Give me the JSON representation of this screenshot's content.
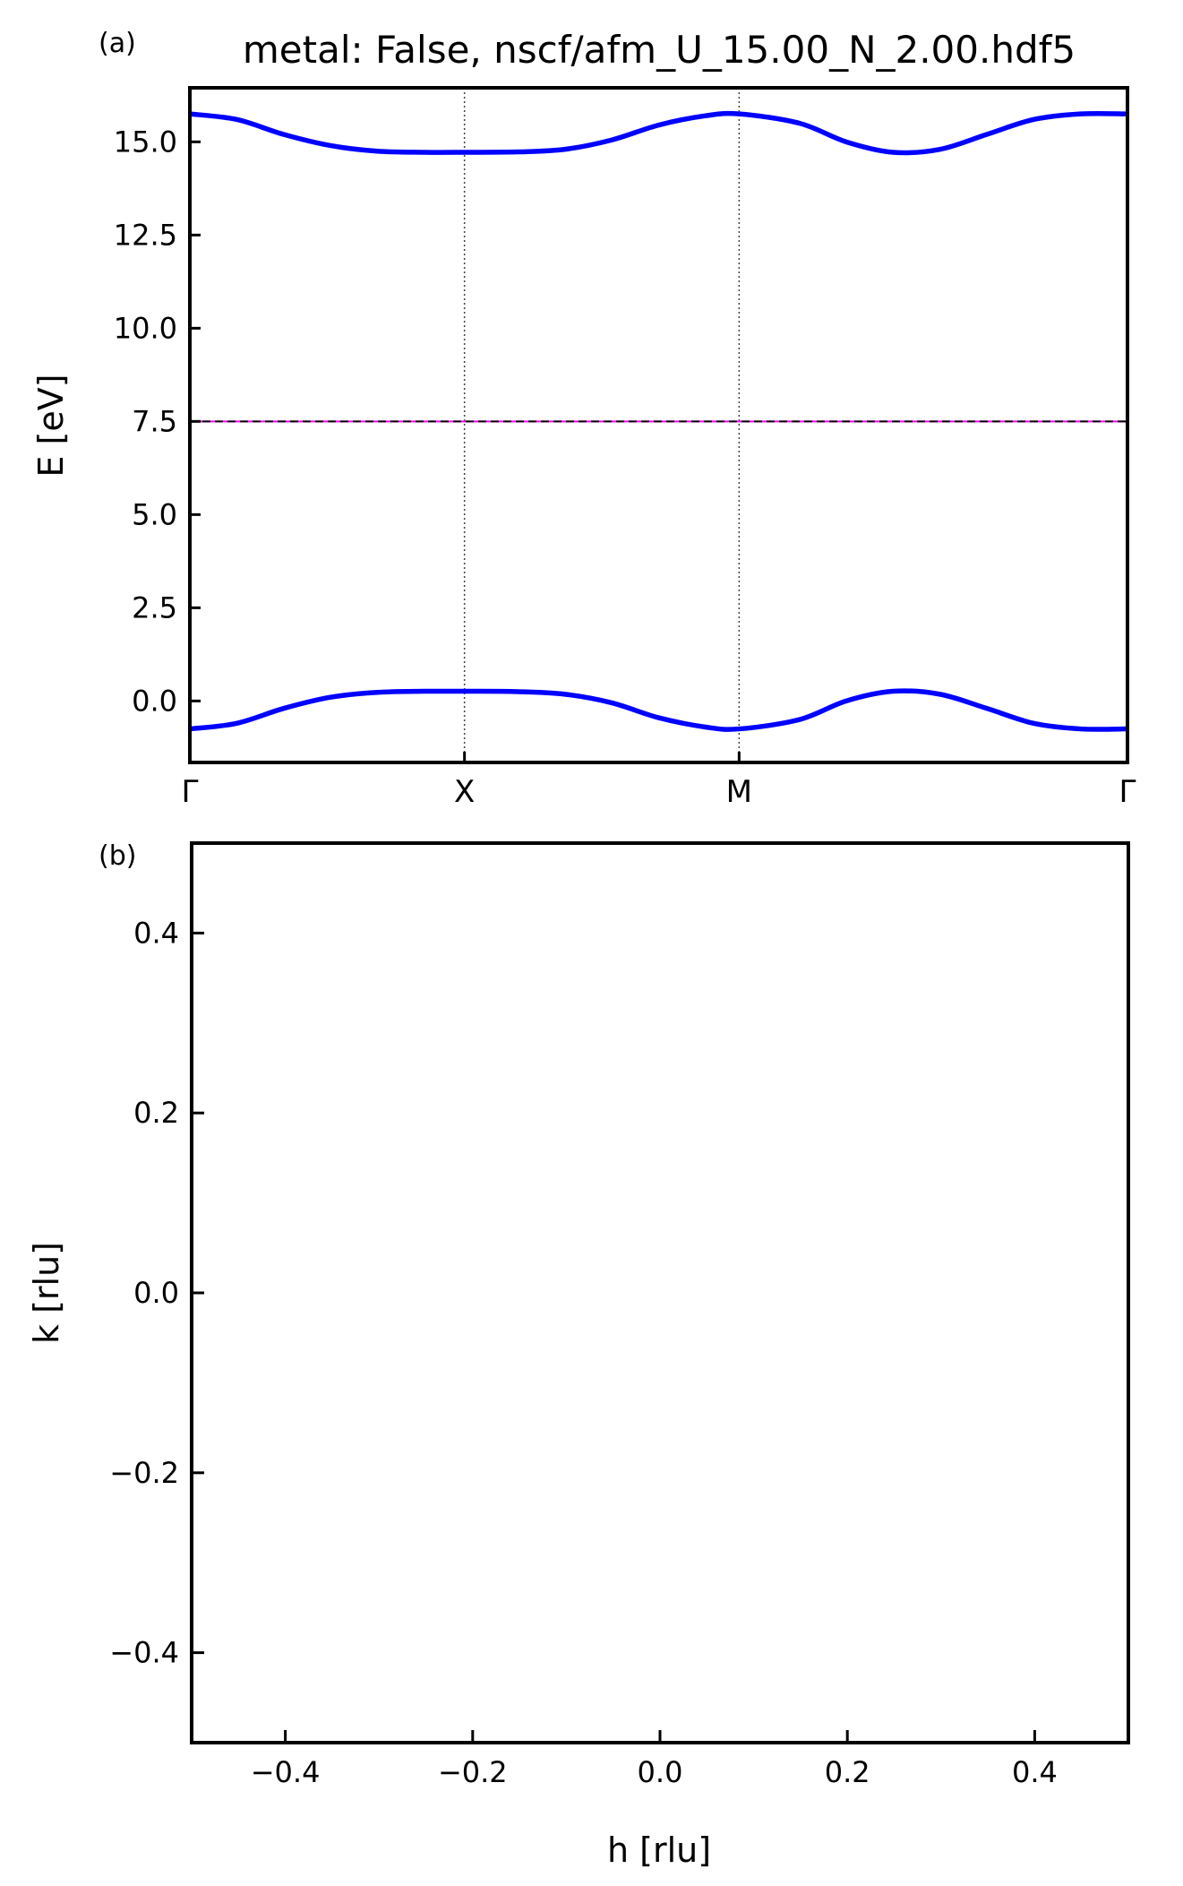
{
  "colors": {
    "band": "#0000ff",
    "fermi_level": "#ff00ff",
    "axes": "#000000"
  },
  "chart_data": [
    {
      "panel_label": "(a)",
      "type": "line",
      "title": "metal: False, nscf/afm_U_15.00_N_2.00.hdf5",
      "xlabel": "",
      "ylabel": "E [eV]",
      "xlim": [
        0,
        1
      ],
      "ylim": [
        -1.65,
        16.45
      ],
      "yticks": [
        0.0,
        2.5,
        5.0,
        7.5,
        10.0,
        12.5,
        15.0
      ],
      "ytick_labels": [
        "0.0",
        "2.5",
        "5.0",
        "7.5",
        "10.0",
        "12.5",
        "15.0"
      ],
      "high_symmetry_points": [
        {
          "label": "Γ",
          "x": 0.0
        },
        {
          "label": "X",
          "x": 0.2929
        },
        {
          "label": "M",
          "x": 0.5858
        },
        {
          "label": "Γ",
          "x": 1.0
        }
      ],
      "fermi_level": 7.5,
      "series": [
        {
          "x": [
            0,
            0.05,
            0.1,
            0.15,
            0.2,
            0.25,
            0.2929,
            0.35,
            0.4,
            0.45,
            0.5,
            0.55,
            0.5858,
            0.65,
            0.7,
            0.75,
            0.8,
            0.85,
            0.9,
            0.95,
            1.0
          ],
          "values": [
            15.75,
            15.6,
            15.2,
            14.9,
            14.75,
            14.72,
            14.72,
            14.73,
            14.8,
            15.05,
            15.45,
            15.7,
            15.75,
            15.5,
            15.0,
            14.72,
            14.8,
            15.2,
            15.6,
            15.75,
            15.75
          ]
        },
        {
          "x": [
            0,
            0.05,
            0.1,
            0.15,
            0.2,
            0.25,
            0.2929,
            0.35,
            0.4,
            0.45,
            0.5,
            0.55,
            0.5858,
            0.65,
            0.7,
            0.75,
            0.8,
            0.85,
            0.9,
            0.95,
            1.0
          ],
          "values": [
            -0.75,
            -0.6,
            -0.2,
            0.1,
            0.23,
            0.26,
            0.26,
            0.25,
            0.18,
            -0.05,
            -0.45,
            -0.7,
            -0.75,
            -0.5,
            0.0,
            0.26,
            0.18,
            -0.2,
            -0.6,
            -0.75,
            -0.75
          ]
        }
      ]
    },
    {
      "panel_label": "(b)",
      "type": "scatter",
      "title": "",
      "xlabel": "h [rlu]",
      "ylabel": "k [rlu]",
      "xlim": [
        -0.5,
        0.5
      ],
      "ylim": [
        -0.5,
        0.5
      ],
      "xticks": [
        -0.4,
        -0.2,
        0.0,
        0.2,
        0.4
      ],
      "xtick_labels": [
        "−0.4",
        "−0.2",
        "0.0",
        "0.2",
        "0.4"
      ],
      "yticks": [
        -0.4,
        -0.2,
        0.0,
        0.2,
        0.4
      ],
      "ytick_labels": [
        "−0.4",
        "−0.2",
        "0.0",
        "0.2",
        "0.4"
      ],
      "series": []
    }
  ]
}
